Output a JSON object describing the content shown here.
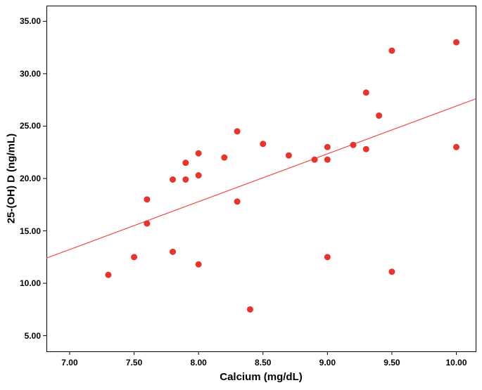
{
  "chart_data": {
    "type": "scatter",
    "title": "",
    "xlabel": "Calcium (mg/dL)",
    "ylabel": "25-(OH) D (ng/mL)",
    "xlim": [
      6.82,
      10.15
    ],
    "ylim": [
      3.5,
      36.5
    ],
    "x_ticks": [
      7.0,
      7.5,
      8.0,
      8.5,
      9.0,
      9.5,
      10.0
    ],
    "y_ticks": [
      5.0,
      10.0,
      15.0,
      20.0,
      25.0,
      30.0,
      35.0
    ],
    "tick_decimal_places": 2,
    "grid": false,
    "legend": "none",
    "point_color": "#e8342c",
    "line_color": "#f2544d",
    "frame_color": "#000000",
    "background_color": "#ffffff",
    "points": [
      [
        7.3,
        10.8
      ],
      [
        7.5,
        12.5
      ],
      [
        7.6,
        18.0
      ],
      [
        7.6,
        15.7
      ],
      [
        7.8,
        19.9
      ],
      [
        7.8,
        13.0
      ],
      [
        7.9,
        21.5
      ],
      [
        7.9,
        19.9
      ],
      [
        8.0,
        22.4
      ],
      [
        8.0,
        20.3
      ],
      [
        8.0,
        11.8
      ],
      [
        8.2,
        22.0
      ],
      [
        8.3,
        24.5
      ],
      [
        8.3,
        17.8
      ],
      [
        8.4,
        7.5
      ],
      [
        8.5,
        23.3
      ],
      [
        8.7,
        22.2
      ],
      [
        8.9,
        21.8
      ],
      [
        9.0,
        23.0
      ],
      [
        9.0,
        21.8
      ],
      [
        9.0,
        12.5
      ],
      [
        9.2,
        23.2
      ],
      [
        9.3,
        28.2
      ],
      [
        9.3,
        22.8
      ],
      [
        9.4,
        26.0
      ],
      [
        9.5,
        32.2
      ],
      [
        9.5,
        11.1
      ],
      [
        10.0,
        33.0
      ],
      [
        10.0,
        23.0
      ]
    ],
    "trend_line": {
      "x1": 6.82,
      "y1": 12.4,
      "x2": 10.15,
      "y2": 27.6
    }
  }
}
